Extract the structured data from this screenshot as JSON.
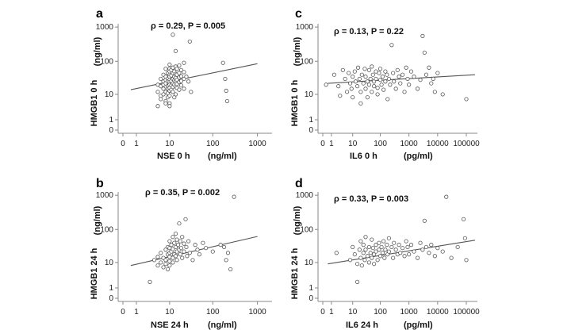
{
  "chart_data": [
    {
      "type": "scatter",
      "panel_label": "a",
      "annotation": "ρ = 0.29, P = 0.005",
      "xlabel": "NSE 0 h",
      "xunit": "(ng/ml)",
      "ylabel": "HMGB1 0 h",
      "yunit": "(ng/ml)",
      "x_scale": "log1p",
      "y_scale": "log1p",
      "x_ticks": [
        0,
        1,
        10,
        100,
        1000
      ],
      "x_tick_labels": [
        "0",
        "1",
        "10",
        "100",
        "1000"
      ],
      "y_ticks": [
        0,
        1,
        10,
        100,
        1000
      ],
      "y_tick_labels": [
        "0",
        "1",
        "10",
        "100",
        "1000"
      ],
      "xlim": [
        0,
        1000
      ],
      "ylim": [
        0,
        1000
      ],
      "fit_line": {
        "x": [
          0.5,
          1000
        ],
        "y": [
          14,
          85
        ]
      },
      "points": [
        [
          5,
          20
        ],
        [
          5,
          12
        ],
        [
          5,
          4
        ],
        [
          6,
          30
        ],
        [
          6,
          18
        ],
        [
          6,
          9
        ],
        [
          6,
          7
        ],
        [
          7,
          40
        ],
        [
          7,
          25
        ],
        [
          7,
          20
        ],
        [
          7,
          15
        ],
        [
          7,
          10
        ],
        [
          8,
          60
        ],
        [
          8,
          35
        ],
        [
          8,
          28
        ],
        [
          8,
          22
        ],
        [
          8,
          12
        ],
        [
          8,
          6
        ],
        [
          8,
          5
        ],
        [
          9,
          45
        ],
        [
          9,
          30
        ],
        [
          9,
          25
        ],
        [
          9,
          18
        ],
        [
          9,
          15
        ],
        [
          9,
          11
        ],
        [
          9,
          8
        ],
        [
          10,
          80
        ],
        [
          10,
          60
        ],
        [
          10,
          50
        ],
        [
          10,
          40
        ],
        [
          10,
          35
        ],
        [
          10,
          28
        ],
        [
          10,
          24
        ],
        [
          10,
          20
        ],
        [
          10,
          16
        ],
        [
          10,
          13
        ],
        [
          10,
          9
        ],
        [
          10,
          5
        ],
        [
          10,
          4
        ],
        [
          11,
          55
        ],
        [
          11,
          38
        ],
        [
          11,
          26
        ],
        [
          11,
          19
        ],
        [
          11,
          14
        ],
        [
          12,
          600
        ],
        [
          12,
          65
        ],
        [
          12,
          45
        ],
        [
          12,
          30
        ],
        [
          12,
          22
        ],
        [
          12,
          17
        ],
        [
          12,
          12
        ],
        [
          13,
          50
        ],
        [
          13,
          35
        ],
        [
          13,
          27
        ],
        [
          13,
          20
        ],
        [
          13,
          8
        ],
        [
          14,
          200
        ],
        [
          14,
          70
        ],
        [
          14,
          42
        ],
        [
          14,
          32
        ],
        [
          14,
          25
        ],
        [
          14,
          18
        ],
        [
          14,
          10
        ],
        [
          15,
          60
        ],
        [
          15,
          40
        ],
        [
          15,
          28
        ],
        [
          15,
          21
        ],
        [
          15,
          16
        ],
        [
          17,
          75
        ],
        [
          17,
          45
        ],
        [
          17,
          33
        ],
        [
          17,
          24
        ],
        [
          17,
          14
        ],
        [
          19,
          55
        ],
        [
          19,
          36
        ],
        [
          19,
          26
        ],
        [
          19,
          19
        ],
        [
          22,
          90
        ],
        [
          22,
          48
        ],
        [
          22,
          30
        ],
        [
          22,
          15
        ],
        [
          25,
          35
        ],
        [
          28,
          25
        ],
        [
          30,
          380
        ],
        [
          32,
          12
        ],
        [
          170,
          90
        ],
        [
          190,
          30
        ],
        [
          200,
          13
        ],
        [
          210,
          6
        ]
      ]
    },
    {
      "type": "scatter",
      "panel_label": "c",
      "annotation": "ρ = 0.13, P = 0.22",
      "xlabel": "IL6 0 h",
      "xunit": "(pg/ml)",
      "ylabel": "HMGB1 0 h",
      "yunit": "(ng/ml)",
      "x_scale": "log1p",
      "y_scale": "log1p",
      "x_ticks": [
        0,
        1,
        10,
        100,
        1000,
        10000,
        100000
      ],
      "x_tick_labels": [
        "0",
        "1",
        "10",
        "100",
        "1000",
        "10000",
        "100000"
      ],
      "y_ticks": [
        0,
        1,
        10,
        100,
        1000
      ],
      "y_tick_labels": [
        "0",
        "1",
        "10",
        "100",
        "1000"
      ],
      "xlim": [
        0,
        100000
      ],
      "ylim": [
        0,
        1000
      ],
      "fit_line": {
        "x": [
          0.5,
          200000
        ],
        "y": [
          22,
          40
        ]
      },
      "points": [
        [
          0.3,
          20
        ],
        [
          1.5,
          40
        ],
        [
          2.5,
          18
        ],
        [
          3,
          9
        ],
        [
          4,
          55
        ],
        [
          5,
          30
        ],
        [
          6,
          12
        ],
        [
          7,
          45
        ],
        [
          8,
          22
        ],
        [
          9,
          15
        ],
        [
          10,
          35
        ],
        [
          10,
          8
        ],
        [
          12,
          50
        ],
        [
          13,
          25
        ],
        [
          15,
          18
        ],
        [
          16,
          65
        ],
        [
          18,
          30
        ],
        [
          20,
          12
        ],
        [
          20,
          5
        ],
        [
          22,
          40
        ],
        [
          25,
          22
        ],
        [
          28,
          60
        ],
        [
          30,
          15
        ],
        [
          30,
          35
        ],
        [
          35,
          25
        ],
        [
          35,
          8
        ],
        [
          40,
          55
        ],
        [
          40,
          20
        ],
        [
          45,
          30
        ],
        [
          50,
          70
        ],
        [
          50,
          12
        ],
        [
          55,
          40
        ],
        [
          60,
          25
        ],
        [
          60,
          18
        ],
        [
          70,
          50
        ],
        [
          70,
          30
        ],
        [
          80,
          16
        ],
        [
          80,
          10
        ],
        [
          90,
          45
        ],
        [
          100,
          28
        ],
        [
          100,
          60
        ],
        [
          110,
          20
        ],
        [
          120,
          35
        ],
        [
          130,
          14
        ],
        [
          150,
          50
        ],
        [
          150,
          25
        ],
        [
          170,
          40
        ],
        [
          180,
          7
        ],
        [
          200,
          30
        ],
        [
          220,
          20
        ],
        [
          250,
          300
        ],
        [
          280,
          45
        ],
        [
          300,
          25
        ],
        [
          350,
          15
        ],
        [
          400,
          55
        ],
        [
          450,
          35
        ],
        [
          500,
          22
        ],
        [
          600,
          40
        ],
        [
          700,
          12
        ],
        [
          800,
          65
        ],
        [
          900,
          30
        ],
        [
          1000,
          20
        ],
        [
          1200,
          50
        ],
        [
          1500,
          35
        ],
        [
          2000,
          15
        ],
        [
          2500,
          28
        ],
        [
          3000,
          550
        ],
        [
          3500,
          180
        ],
        [
          4000,
          40
        ],
        [
          5000,
          65
        ],
        [
          6000,
          22
        ],
        [
          7000,
          30
        ],
        [
          8000,
          12
        ],
        [
          10000,
          45
        ],
        [
          15000,
          10
        ],
        [
          100000,
          7
        ]
      ]
    },
    {
      "type": "scatter",
      "panel_label": "b",
      "annotation": "ρ = 0.35, P = 0.002",
      "xlabel": "NSE 24 h",
      "xunit": "(ng/ml)",
      "ylabel": "HMGB1 24 h",
      "yunit": "(ng/ml)",
      "x_scale": "log1p",
      "y_scale": "log1p",
      "x_ticks": [
        0,
        1,
        10,
        100,
        1000
      ],
      "x_tick_labels": [
        "0",
        "1",
        "10",
        "100",
        "1000"
      ],
      "y_ticks": [
        0,
        1,
        10,
        100,
        1000
      ],
      "y_tick_labels": [
        "0",
        "1",
        "10",
        "100",
        "1000"
      ],
      "xlim": [
        0,
        1000
      ],
      "ylim": [
        0,
        1000
      ],
      "fit_line": {
        "x": [
          0.5,
          1000
        ],
        "y": [
          8,
          62
        ]
      },
      "points": [
        [
          3,
          2
        ],
        [
          4,
          12
        ],
        [
          5,
          8
        ],
        [
          5,
          15
        ],
        [
          6,
          20
        ],
        [
          6,
          10
        ],
        [
          7,
          7
        ],
        [
          7,
          14
        ],
        [
          8,
          25
        ],
        [
          8,
          12
        ],
        [
          8,
          9
        ],
        [
          9,
          30
        ],
        [
          9,
          18
        ],
        [
          9,
          6
        ],
        [
          10,
          45
        ],
        [
          10,
          28
        ],
        [
          10,
          20
        ],
        [
          10,
          15
        ],
        [
          10,
          11
        ],
        [
          10,
          8
        ],
        [
          11,
          35
        ],
        [
          11,
          22
        ],
        [
          12,
          60
        ],
        [
          12,
          26
        ],
        [
          12,
          14
        ],
        [
          12,
          10
        ],
        [
          13,
          40
        ],
        [
          13,
          18
        ],
        [
          14,
          75
        ],
        [
          14,
          30
        ],
        [
          14,
          16
        ],
        [
          15,
          50
        ],
        [
          15,
          22
        ],
        [
          15,
          12
        ],
        [
          16,
          35
        ],
        [
          17,
          150
        ],
        [
          17,
          25
        ],
        [
          18,
          45
        ],
        [
          18,
          18
        ],
        [
          19,
          28
        ],
        [
          20,
          60
        ],
        [
          20,
          14
        ],
        [
          22,
          38
        ],
        [
          22,
          22
        ],
        [
          24,
          200
        ],
        [
          25,
          30
        ],
        [
          26,
          16
        ],
        [
          28,
          45
        ],
        [
          30,
          20
        ],
        [
          35,
          12
        ],
        [
          40,
          35
        ],
        [
          45,
          25
        ],
        [
          50,
          18
        ],
        [
          60,
          40
        ],
        [
          70,
          28
        ],
        [
          100,
          22
        ],
        [
          150,
          35
        ],
        [
          180,
          30
        ],
        [
          200,
          12
        ],
        [
          220,
          20
        ],
        [
          250,
          6
        ],
        [
          300,
          900
        ]
      ]
    },
    {
      "type": "scatter",
      "panel_label": "d",
      "annotation": "ρ = 0.33, P = 0.003",
      "xlabel": "IL6 24 h",
      "xunit": "(pg/ml)",
      "ylabel": "HMGB1 24 h",
      "yunit": "(ng/ml)",
      "x_scale": "log1p",
      "y_scale": "log1p",
      "x_ticks": [
        0,
        1,
        10,
        100,
        1000,
        10000,
        100000
      ],
      "x_tick_labels": [
        "0",
        "1",
        "10",
        "100",
        "1000",
        "10000",
        "100000"
      ],
      "y_ticks": [
        0,
        1,
        10,
        100,
        1000
      ],
      "y_tick_labels": [
        "0",
        "1",
        "10",
        "100",
        "1000"
      ],
      "xlim": [
        0,
        100000
      ],
      "ylim": [
        0,
        1000
      ],
      "fit_line": {
        "x": [
          0.5,
          200000
        ],
        "y": [
          9,
          48
        ]
      },
      "points": [
        [
          2,
          20
        ],
        [
          8,
          12
        ],
        [
          10,
          30
        ],
        [
          12,
          18
        ],
        [
          15,
          2
        ],
        [
          15,
          9
        ],
        [
          18,
          25
        ],
        [
          20,
          45
        ],
        [
          20,
          14
        ],
        [
          22,
          8
        ],
        [
          25,
          35
        ],
        [
          25,
          20
        ],
        [
          28,
          12
        ],
        [
          30,
          60
        ],
        [
          30,
          25
        ],
        [
          35,
          16
        ],
        [
          40,
          30
        ],
        [
          40,
          10
        ],
        [
          45,
          20
        ],
        [
          50,
          50
        ],
        [
          50,
          14
        ],
        [
          55,
          28
        ],
        [
          60,
          18
        ],
        [
          60,
          9
        ],
        [
          70,
          35
        ],
        [
          70,
          22
        ],
        [
          80,
          12
        ],
        [
          90,
          40
        ],
        [
          90,
          25
        ],
        [
          100,
          16
        ],
        [
          110,
          30
        ],
        [
          120,
          20
        ],
        [
          130,
          45
        ],
        [
          140,
          14
        ],
        [
          150,
          25
        ],
        [
          170,
          35
        ],
        [
          180,
          18
        ],
        [
          200,
          55
        ],
        [
          200,
          22
        ],
        [
          250,
          30
        ],
        [
          280,
          14
        ],
        [
          300,
          40
        ],
        [
          350,
          25
        ],
        [
          400,
          18
        ],
        [
          450,
          35
        ],
        [
          500,
          20
        ],
        [
          600,
          28
        ],
        [
          700,
          16
        ],
        [
          800,
          45
        ],
        [
          900,
          30
        ],
        [
          1000,
          18
        ],
        [
          1200,
          35
        ],
        [
          1500,
          22
        ],
        [
          2000,
          14
        ],
        [
          2500,
          40
        ],
        [
          3000,
          25
        ],
        [
          3500,
          180
        ],
        [
          4000,
          30
        ],
        [
          5000,
          20
        ],
        [
          6000,
          35
        ],
        [
          8000,
          16
        ],
        [
          10000,
          28
        ],
        [
          15000,
          22
        ],
        [
          20000,
          900
        ],
        [
          30000,
          14
        ],
        [
          50000,
          30
        ],
        [
          80000,
          200
        ],
        [
          90000,
          55
        ],
        [
          100000,
          12
        ]
      ]
    }
  ]
}
